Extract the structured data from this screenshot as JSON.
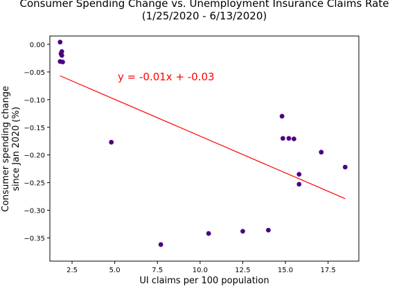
{
  "chart_data": {
    "type": "scatter",
    "title_lines": [
      "Consumer Spending Change vs. Unemployment Insurance Claims Rate",
      "(1/25/2020 - 6/13/2020)"
    ],
    "xlabel": "UI claims per 100 population",
    "ylabel_lines": [
      "Consumer spending change",
      "since Jan 2020 (%)"
    ],
    "xlim": [
      1.2,
      19.3
    ],
    "ylim": [
      -0.392,
      0.015
    ],
    "xticks": [
      2.5,
      5.0,
      7.5,
      10.0,
      12.5,
      15.0,
      17.5
    ],
    "xtick_labels": [
      "2.5",
      "5.0",
      "7.5",
      "10.0",
      "12.5",
      "15.0",
      "17.5"
    ],
    "yticks": [
      0.0,
      -0.05,
      -0.1,
      -0.15,
      -0.2,
      -0.25,
      -0.3,
      -0.35
    ],
    "ytick_labels": [
      "0.00",
      "−0.05",
      "−0.10",
      "−0.15",
      "−0.20",
      "−0.25",
      "−0.30",
      "−0.35"
    ],
    "grid": false,
    "points": {
      "x": [
        1.8,
        1.9,
        1.85,
        1.9,
        1.8,
        1.95,
        4.8,
        7.7,
        10.5,
        12.5,
        14.0,
        14.8,
        14.85,
        15.2,
        15.5,
        15.8,
        15.8,
        17.1,
        18.5
      ],
      "y": [
        0.004,
        -0.013,
        -0.017,
        -0.02,
        -0.031,
        -0.032,
        -0.177,
        -0.362,
        -0.342,
        -0.338,
        -0.336,
        -0.13,
        -0.17,
        -0.17,
        -0.171,
        -0.235,
        -0.253,
        -0.195,
        -0.222
      ]
    },
    "regression": {
      "x": [
        1.8,
        18.5
      ],
      "y": [
        -0.057,
        -0.279
      ],
      "annotation": "y = -0.01x + -0.03"
    },
    "colors": {
      "points": "#4b0082",
      "regression": "#ff0000",
      "annotation": "#ff0000"
    }
  }
}
